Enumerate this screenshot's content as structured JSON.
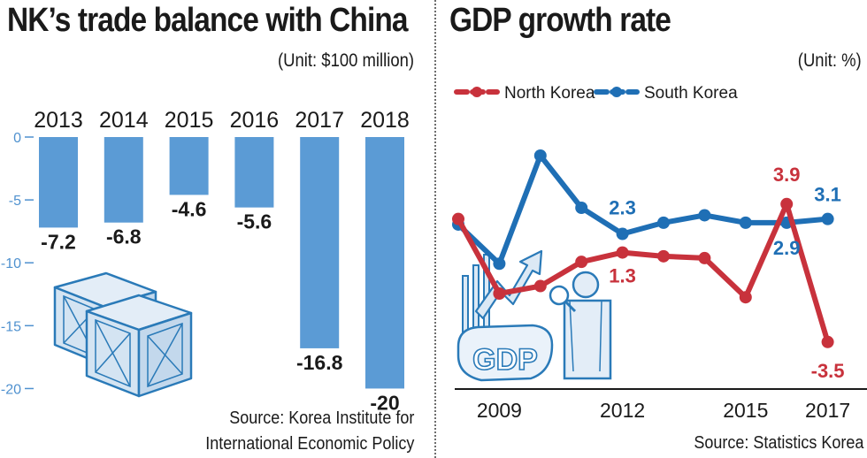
{
  "chart_data": [
    {
      "type": "bar",
      "title": "NK’s trade balance with China",
      "unit": "(Unit: $100 million)",
      "categories": [
        "2013",
        "2014",
        "2015",
        "2016",
        "2017",
        "2018"
      ],
      "values": [
        -7.2,
        -6.8,
        -4.6,
        -5.6,
        -16.8,
        -20
      ],
      "value_labels": [
        "-7.2",
        "-6.8",
        "-4.6",
        "-5.6",
        "-16.8",
        "-20"
      ],
      "y_ticks": [
        "0",
        "-5",
        "-10",
        "-15",
        "-20"
      ],
      "y_tick_values": [
        0,
        -5,
        -10,
        -15,
        -20
      ],
      "ylim": [
        -22.5,
        0
      ],
      "bar_color": "#5b9bd5",
      "source": [
        "Source: Korea Institute for",
        "International Economic Policy"
      ]
    },
    {
      "type": "line",
      "title": "GDP growth rate",
      "unit": "(Unit: %)",
      "x": [
        2008,
        2009,
        2010,
        2011,
        2012,
        2013,
        2014,
        2015,
        2016,
        2017
      ],
      "x_ticks": [
        "2009",
        "2012",
        "2015",
        "2017"
      ],
      "x_tick_values": [
        2009,
        2012,
        2015,
        2017
      ],
      "ylim": [
        -4.6,
        7.4
      ],
      "series": [
        {
          "name": "North Korea",
          "color": "#c8323c",
          "values": [
            3.1,
            -0.9,
            -0.5,
            0.8,
            1.3,
            1.1,
            1.0,
            -1.1,
            3.9,
            -3.5
          ]
        },
        {
          "name": "South Korea",
          "color": "#1f6fb5",
          "values": [
            2.8,
            0.7,
            6.5,
            3.7,
            2.3,
            2.9,
            3.3,
            2.9,
            2.9,
            3.1
          ]
        }
      ],
      "annotations": [
        {
          "text": "2.3",
          "series": 1,
          "index": 4
        },
        {
          "text": "1.3",
          "series": 0,
          "index": 4
        },
        {
          "text": "3.9",
          "series": 0,
          "index": 8
        },
        {
          "text": "2.9",
          "series": 1,
          "index": 8
        },
        {
          "text": "3.1",
          "series": 1,
          "index": 9
        },
        {
          "text": "-3.5",
          "series": 0,
          "index": 9
        }
      ],
      "source": "Source: Statistics Korea"
    }
  ],
  "illustrations": {
    "left": "crates-icon",
    "right": "gdp-analyst-icon",
    "gdp_text": "GDP"
  }
}
